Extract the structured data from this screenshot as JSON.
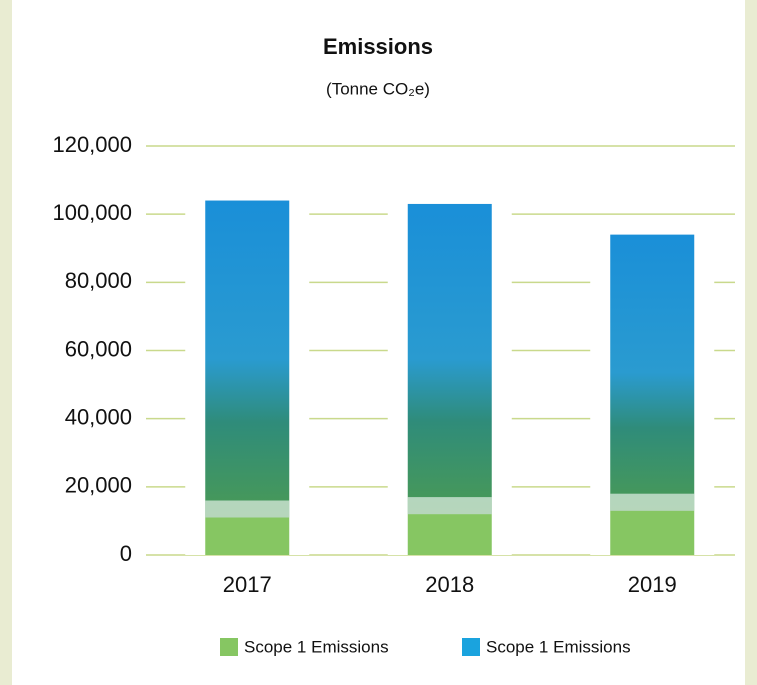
{
  "chart_data": {
    "type": "stacked-bar",
    "title": "Emissions",
    "subtitle": "(Tonne CO₂e)",
    "categories": [
      "2017",
      "2018",
      "2019"
    ],
    "series": [
      {
        "name": "Scope 1 Emissions",
        "color": "#86c662",
        "values": [
          11000,
          12000,
          13000
        ]
      },
      {
        "name": "Scope 1 Emissions",
        "color": "#1aa3de",
        "values": [
          93000,
          91000,
          81000
        ]
      }
    ],
    "ylim": [
      0,
      120000
    ],
    "yticks": [
      {
        "value": 0,
        "label": "0"
      },
      {
        "value": 20000,
        "label": "20,000"
      },
      {
        "value": 40000,
        "label": "40,000"
      },
      {
        "value": 60000,
        "label": "60,000"
      },
      {
        "value": 80000,
        "label": "80,000"
      },
      {
        "value": 100000,
        "label": "100,000"
      },
      {
        "value": 120000,
        "label": "120,000"
      }
    ],
    "grid": true
  }
}
